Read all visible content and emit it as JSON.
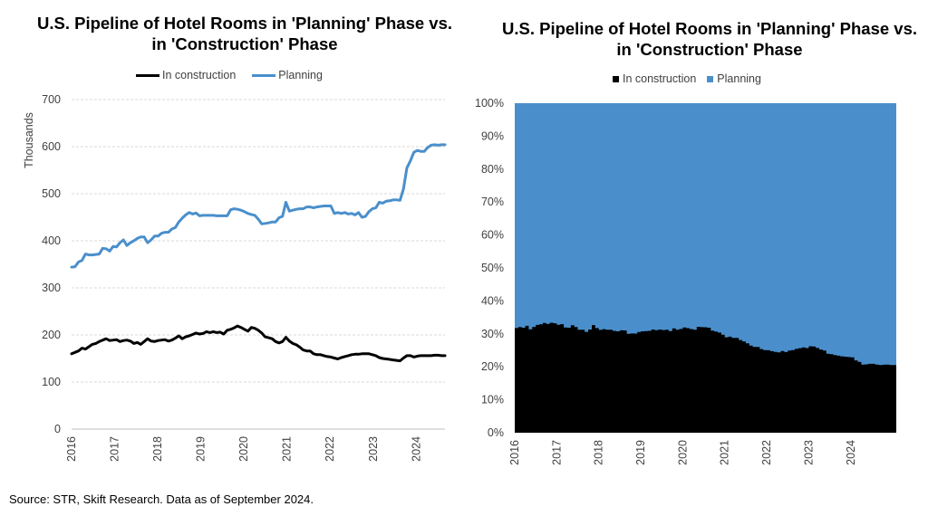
{
  "source": "Source: STR, Skift Research. Data as of September 2024.",
  "chart_data": [
    {
      "type": "line",
      "title": "U.S. Pipeline of Hotel Rooms in 'Planning' Phase vs. in 'Construction' Phase",
      "ylabel": "Thousands",
      "ylim": [
        0,
        700
      ],
      "yticks": [
        "0",
        "100",
        "200",
        "300",
        "400",
        "500",
        "600",
        "700"
      ],
      "xticks": [
        "2016",
        "2017",
        "2018",
        "2019",
        "2020",
        "2021",
        "2022",
        "2023",
        "2024"
      ],
      "x_start": 2016.0,
      "x_end": 2024.667,
      "grid": true,
      "legend_position": "top",
      "series": [
        {
          "name": "In construction",
          "color": "#000000",
          "values": [
            160,
            163,
            166,
            172,
            170,
            175,
            180,
            182,
            186,
            189,
            192,
            188,
            189,
            190,
            186,
            188,
            189,
            187,
            182,
            184,
            180,
            186,
            192,
            187,
            186,
            188,
            189,
            190,
            187,
            189,
            193,
            198,
            192,
            196,
            198,
            201,
            204,
            202,
            203,
            207,
            205,
            207,
            205,
            206,
            202,
            210,
            212,
            215,
            219,
            216,
            212,
            208,
            216,
            214,
            210,
            204,
            196,
            194,
            192,
            186,
            183,
            186,
            195,
            187,
            182,
            179,
            174,
            168,
            166,
            166,
            160,
            158,
            158,
            156,
            154,
            153,
            151,
            149,
            152,
            154,
            156,
            158,
            159,
            159,
            160,
            160,
            160,
            158,
            156,
            152,
            150,
            149,
            148,
            147,
            146,
            145,
            151,
            156,
            156,
            153,
            155,
            156,
            156,
            156,
            156,
            157,
            157,
            156,
            156
          ]
        },
        {
          "name": "Planning",
          "color": "#4a8fcc",
          "values": [
            344,
            345,
            355,
            358,
            372,
            370,
            370,
            371,
            372,
            384,
            383,
            378,
            388,
            387,
            396,
            402,
            390,
            396,
            400,
            405,
            408,
            408,
            396,
            402,
            410,
            410,
            416,
            418,
            418,
            425,
            428,
            440,
            448,
            455,
            460,
            457,
            459,
            453,
            454,
            454,
            454,
            454,
            453,
            453,
            453,
            453,
            466,
            468,
            467,
            465,
            462,
            458,
            456,
            454,
            446,
            436,
            437,
            438,
            440,
            440,
            449,
            452,
            482,
            463,
            465,
            467,
            468,
            468,
            472,
            472,
            470,
            472,
            473,
            474,
            474,
            474,
            458,
            460,
            458,
            460,
            457,
            458,
            455,
            460,
            450,
            452,
            462,
            468,
            470,
            482,
            480,
            484,
            485,
            487,
            487,
            486,
            510,
            555,
            570,
            588,
            592,
            590,
            590,
            598,
            603,
            604,
            603,
            604,
            604
          ]
        }
      ]
    },
    {
      "type": "area",
      "stacked_percent": true,
      "title": "U.S. Pipeline of Hotel Rooms in 'Planning' Phase vs. in 'Construction' Phase",
      "ylim": [
        0,
        100
      ],
      "yticks": [
        "0%",
        "10%",
        "20%",
        "30%",
        "40%",
        "50%",
        "60%",
        "70%",
        "80%",
        "90%",
        "100%"
      ],
      "xticks": [
        "2016",
        "2017",
        "2018",
        "2019",
        "2020",
        "2021",
        "2022",
        "2023",
        "2024"
      ],
      "legend_position": "top",
      "series": [
        {
          "name": "In construction",
          "color": "#000000"
        },
        {
          "name": "Planning",
          "color": "#4a8fcc"
        }
      ]
    }
  ]
}
